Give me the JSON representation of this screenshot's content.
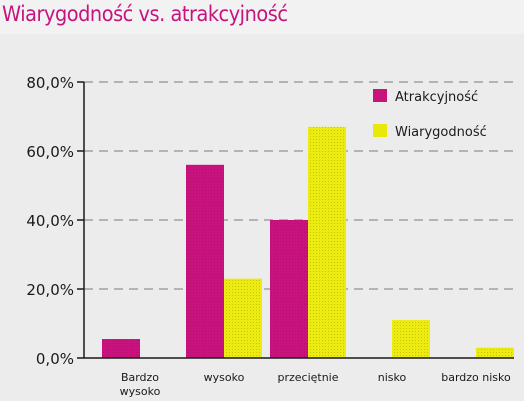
{
  "title": "Wiarygodność vs. atrakcyjność",
  "colors": {
    "atrakcyjnosc": "#c8137e",
    "wiarygodnosc": "#e9e80a",
    "background": "#ececec",
    "title": "#c6137e"
  },
  "chart_data": {
    "type": "bar",
    "title": "Wiarygodność vs. atrakcyjność",
    "xlabel": "",
    "ylabel": "",
    "categories": [
      "Bardzo wysoko",
      "wysoko",
      "przeciętnie",
      "nisko",
      "bardzo nisko"
    ],
    "series": [
      {
        "name": "Atrakcyjność",
        "values": [
          5.5,
          56.0,
          40.0,
          0.0,
          0.0
        ]
      },
      {
        "name": "Wiarygodność",
        "values": [
          0.0,
          23.0,
          67.0,
          11.0,
          3.0
        ]
      }
    ],
    "ylim": [
      0,
      80
    ],
    "yticks": [
      0,
      20,
      40,
      60,
      80
    ],
    "ytick_labels": [
      "0,0%",
      "20,0%",
      "40,0%",
      "60,0%",
      "80,0%"
    ],
    "grid": "dashed horizontal",
    "legend_position": "top-right"
  }
}
